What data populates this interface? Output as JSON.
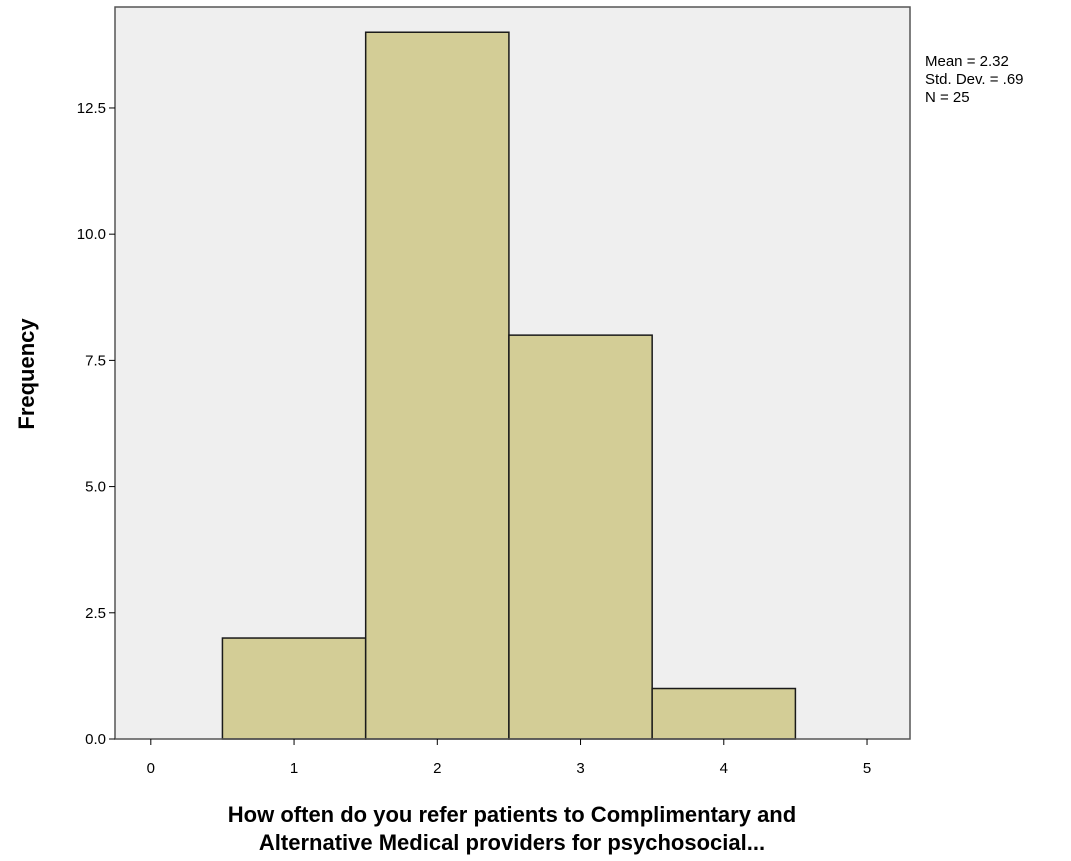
{
  "chart_data": {
    "type": "bar",
    "subtype": "histogram",
    "bins": [
      {
        "start": 0.5,
        "end": 1.5,
        "value": 2
      },
      {
        "start": 1.5,
        "end": 2.5,
        "value": 14
      },
      {
        "start": 2.5,
        "end": 3.5,
        "value": 8
      },
      {
        "start": 3.5,
        "end": 4.5,
        "value": 1
      }
    ],
    "xlabel_lines": [
      "How often do you refer patients to Complimentary and",
      "Alternative Medical providers for psychosocial..."
    ],
    "ylabel": "Frequency",
    "xlim": [
      -0.25,
      5.3
    ],
    "ylim": [
      0,
      14.5
    ],
    "x_ticks": [
      "0",
      "1",
      "2",
      "3",
      "4",
      "5"
    ],
    "y_ticks": [
      "0.0",
      "2.5",
      "5.0",
      "7.5",
      "10.0",
      "12.5"
    ],
    "grid": false,
    "stats": {
      "mean": "Mean = 2.32",
      "std_dev": "Std. Dev. = .69",
      "n": "N = 25"
    },
    "colors": {
      "bar_fill": "#d3cd96",
      "bar_stroke": "#1a1a1a",
      "plot_background": "#efefef"
    }
  }
}
